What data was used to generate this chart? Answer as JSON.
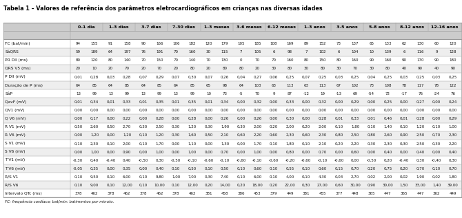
{
  "title": "Tabela 1 – Valores de referência dos parâmetros eletrocardiográficos em crianças nas diversas idades",
  "footer": "FC: frequência cardíaca; bat/min: batimentos por minuto.",
  "col_groups": [
    "0-1 dia",
    "1-3 dias",
    "3-7 dias",
    "7-30 dias",
    "1-3 meses",
    "3-6 meses",
    "6-12 meses",
    "1-3 anos",
    "3-5 anos",
    "5-8 anos",
    "8-12 anos",
    "12-16 anos"
  ],
  "rows": [
    {
      "label": "FC (bat/min)",
      "values": [
        "94",
        "155",
        "91",
        "158",
        "90",
        "166",
        "106",
        "182",
        "120",
        "179",
        "105",
        "185",
        "108",
        "169",
        "89",
        "152",
        "73",
        "137",
        "65",
        "133",
        "62",
        "130",
        "60",
        "120"
      ]
    },
    {
      "label": "SàQRS",
      "values": [
        "59",
        "189",
        "64",
        "197",
        "76",
        "191",
        "70",
        "160",
        "30",
        "115",
        "7",
        "105",
        "6",
        "98",
        "7",
        "102",
        "6",
        "104",
        "10",
        "139",
        "6",
        "116",
        "9",
        "128"
      ]
    },
    {
      "label": "PR DII (ms)",
      "values": [
        "80",
        "120",
        "80",
        "140",
        "70",
        "150",
        "70",
        "140",
        "70",
        "130",
        "0",
        "70",
        "70",
        "160",
        "80",
        "150",
        "80",
        "160",
        "90",
        "160",
        "90",
        "170",
        "90",
        "180"
      ]
    },
    {
      "label": "QRS V5 (ms)",
      "values": [
        "20",
        "10",
        "20",
        "70",
        "20",
        "70",
        "20",
        "80",
        "20",
        "80",
        "80",
        "20",
        "30",
        "80",
        "30",
        "80",
        "30",
        "70",
        "30",
        "80",
        "40",
        "90",
        "40",
        "90"
      ]
    },
    {
      "label": "P DII (mV)",
      "values": [
        "0,01",
        "0,28",
        "0,03",
        "0,28",
        "0,07",
        "0,29",
        "0,07",
        "0,30",
        "0,07",
        "0,26",
        "0,04",
        "0,27",
        "0,06",
        "0,25",
        "0,07",
        "0,25",
        "0,03",
        "0,25",
        "0,04",
        "0,25",
        "0,03",
        "0,25",
        "0,03",
        "0,25"
      ]
    },
    {
      "label": "Duração de P (ms)",
      "values": [
        "64",
        "85",
        "64",
        "85",
        "64",
        "85",
        "64",
        "85",
        "65",
        "98",
        "64",
        "103",
        "63",
        "113",
        "63",
        "113",
        "67",
        "102",
        "73",
        "108",
        "78",
        "117",
        "78",
        "122"
      ]
    },
    {
      "label": "SâP",
      "values": [
        "13",
        "99",
        "13",
        "99",
        "13",
        "99",
        "13",
        "99",
        "10",
        "73",
        "-5",
        "70",
        "9",
        "87",
        "-12",
        "19",
        "-13",
        "69",
        "-54",
        "72",
        "-17",
        "76",
        "-24",
        "76"
      ]
    },
    {
      "label": "QavF (mV)",
      "values": [
        "0,01",
        "0,34",
        "0,01",
        "0,33",
        "0,01",
        "0,35",
        "0,01",
        "0,35",
        "0,01",
        "0,34",
        "0,00",
        "0,32",
        "0,00",
        "0,33",
        "0,00",
        "0,32",
        "0,00",
        "0,29",
        "0,00",
        "0,25",
        "0,00",
        "0,27",
        "0,00",
        "0,24"
      ]
    },
    {
      "label": "QV1 (mV)",
      "values": [
        "0,00",
        "0,00",
        "0,00",
        "0,00",
        "0,00",
        "0,00",
        "0,00",
        "0,00",
        "0,00",
        "0,00",
        "0,00",
        "0,00",
        "0,00",
        "0,00",
        "0,00",
        "0,00",
        "0,00",
        "0,00",
        "0,00",
        "0,00",
        "0,00",
        "0,00",
        "0,00",
        "0,00"
      ]
    },
    {
      "label": "Q V6 (mV)",
      "values": [
        "0,00",
        "0,17",
        "0,00",
        "0,22",
        "0,00",
        "0,28",
        "0,00",
        "0,28",
        "0,00",
        "0,26",
        "0,00",
        "0,26",
        "0,00",
        "0,30",
        "0,00",
        "0,28",
        "0,01",
        "0,33",
        "0,01",
        "0,46",
        "0,01",
        "0,28",
        "0,00",
        "0,29"
      ]
    },
    {
      "label": "R V1 (mV)",
      "values": [
        "0,50",
        "2,60",
        "0,50",
        "2,70",
        "0,30",
        "2,50",
        "0,30",
        "1,20",
        "0,30",
        "1,90",
        "0,30",
        "2,00",
        "0,20",
        "2,00",
        "0,20",
        "2,00",
        "0,10",
        "1,80",
        "0,10",
        "1,40",
        "0,10",
        "1,20",
        "0,10",
        "1,00"
      ]
    },
    {
      "label": "R V6 (mV)",
      "values": [
        "0,00",
        "1,20",
        "0,00",
        "1,20",
        "0,10",
        "1,20",
        "0,30",
        "1,60",
        "0,50",
        "2,10",
        "0,60",
        "2,20",
        "0,60",
        "2,30",
        "0,60",
        "2,30",
        "0,80",
        "2,50",
        "0,80",
        "2,60",
        "0,90",
        "2,50",
        "0,70",
        "2,30"
      ]
    },
    {
      "label": "S V1 (mV)",
      "values": [
        "0,10",
        "2,30",
        "0,10",
        "2,00",
        "0,10",
        "1,70",
        "0,00",
        "1,10",
        "0,00",
        "1,30",
        "0,00",
        "1,70",
        "0,10",
        "1,80",
        "0,10",
        "2,10",
        "0,20",
        "2,20",
        "0,30",
        "2,30",
        "0,30",
        "2,50",
        "0,30",
        "2,20"
      ]
    },
    {
      "label": "S V6 (mV)",
      "values": [
        "0,00",
        "1,00",
        "0,00",
        "0,90",
        "0,00",
        "1,00",
        "0,00",
        "1,00",
        "0,00",
        "0,70",
        "0,00",
        "1,00",
        "0,00",
        "0,80",
        "0,00",
        "0,70",
        "0,00",
        "0,60",
        "0,00",
        "0,40",
        "0,00",
        "0,40",
        "0,00",
        "0,40"
      ]
    },
    {
      "label": "T V1 (mV)",
      "values": [
        "-0,30",
        "0,40",
        "-0,40",
        "0,40",
        "-0,50",
        "0,30",
        "-0,50",
        "-0,10",
        "-0,60",
        "-0,10",
        "-0,60",
        "-0,10",
        "-0,60",
        "-0,20",
        "-0,60",
        "-0,10",
        "-0,60",
        "0,00",
        "-0,50",
        "0,20",
        "-0,40",
        "0,30",
        "-0,40",
        "0,30"
      ]
    },
    {
      "label": "T V6 (mV)",
      "values": [
        "-0,05",
        "0,35",
        "0,00",
        "0,35",
        "0,00",
        "0,40",
        "0,10",
        "0,50",
        "0,10",
        "0,50",
        "0,10",
        "0,60",
        "0,10",
        "0,55",
        "0,10",
        "0,60",
        "0,15",
        "0,70",
        "0,20",
        "0,75",
        "0,20",
        "0,70",
        "0,10",
        "0,70"
      ]
    },
    {
      "label": "R/S V1",
      "values": [
        "0,10",
        "9,50",
        "0,10",
        "6,00",
        "0,10",
        "9,80",
        "1,00",
        "7,00",
        "0,30",
        "7,40",
        "0,10",
        "6,00",
        "0,10",
        "4,00",
        "0,10",
        "4,30",
        "0,03",
        "2,70",
        "0,02",
        "2,00",
        "0,02",
        "1,90",
        "0,02",
        "1,80"
      ]
    },
    {
      "label": "R/S V6",
      "values": [
        "0,10",
        "9,00",
        "0,10",
        "12,00",
        "0,10",
        "10,00",
        "0,10",
        "12,00",
        "0,20",
        "14,00",
        "0,20",
        "18,00",
        "0,20",
        "22,00",
        "0,30",
        "27,00",
        "0,60",
        "30,00",
        "0,90",
        "30,00",
        "1,50",
        "33,00",
        "1,40",
        "39,00"
      ]
    },
    {
      "label": "Intervalo QTc (ms)",
      "values": [
        "378",
        "462",
        "378",
        "462",
        "378",
        "462",
        "378",
        "462",
        "381",
        "458",
        "386",
        "453",
        "379",
        "449",
        "381",
        "455",
        "377",
        "448",
        "365",
        "447",
        "365",
        "447",
        "362",
        "449"
      ]
    }
  ],
  "header_bg": "#cccccc",
  "alt_row_bg": "#eeeeee",
  "white_row_bg": "#ffffff",
  "border_color": "#999999",
  "title_color": "#000000",
  "text_color": "#111111",
  "header_text_color": "#000000",
  "title_fontsize": 5.8,
  "header_fontsize": 4.6,
  "label_fontsize": 4.2,
  "data_fontsize": 4.0,
  "footer_fontsize": 4.0
}
